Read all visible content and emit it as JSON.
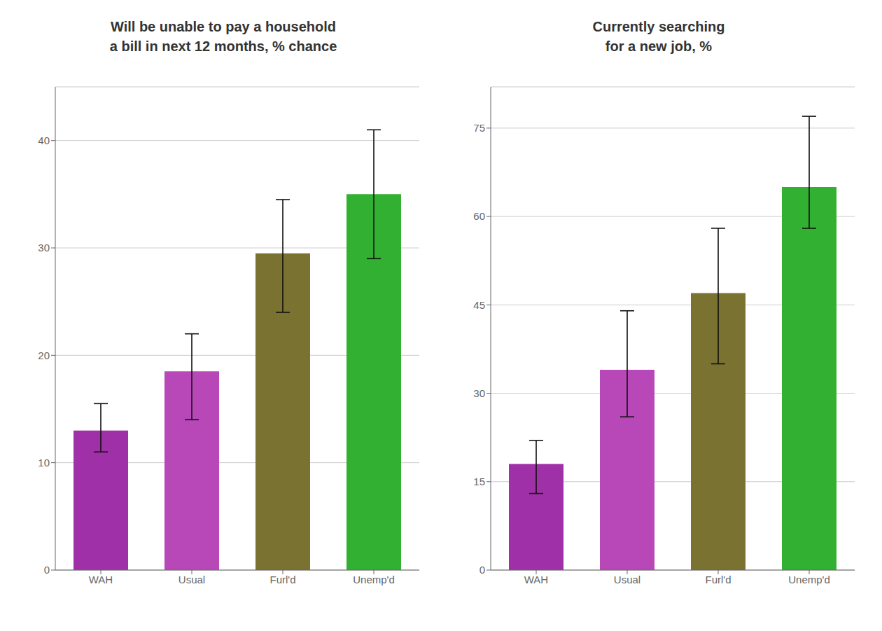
{
  "chart_data": [
    {
      "type": "bar",
      "title": "Will be unable to pay a household\na bill in next 12 months, % chance",
      "categories": [
        "WAH",
        "Usual",
        "Furl'd",
        "Unemp'd"
      ],
      "values": [
        13.0,
        18.5,
        29.5,
        35.0
      ],
      "ci_lower": [
        11.0,
        14.0,
        24.0,
        29.0
      ],
      "ci_upper": [
        15.5,
        22.0,
        34.5,
        41.0
      ],
      "colors": [
        "#a030a8",
        "#b848b8",
        "#7a7230",
        "#32b032"
      ],
      "ylim": [
        0,
        45
      ],
      "yticks": [
        0,
        10,
        20,
        30,
        40
      ],
      "grid": true
    },
    {
      "type": "bar",
      "title": "Currently searching\nfor a new job, %",
      "categories": [
        "WAH",
        "Usual",
        "Furl'd",
        "Unemp'd"
      ],
      "values": [
        18.0,
        34.0,
        47.0,
        65.0
      ],
      "ci_lower": [
        13.0,
        26.0,
        35.0,
        58.0
      ],
      "ci_upper": [
        22.0,
        44.0,
        58.0,
        77.0
      ],
      "colors": [
        "#a030a8",
        "#b848b8",
        "#7a7230",
        "#32b032"
      ],
      "ylim": [
        0,
        82
      ],
      "yticks": [
        0,
        15,
        30,
        45,
        60,
        75
      ],
      "grid": true
    }
  ]
}
